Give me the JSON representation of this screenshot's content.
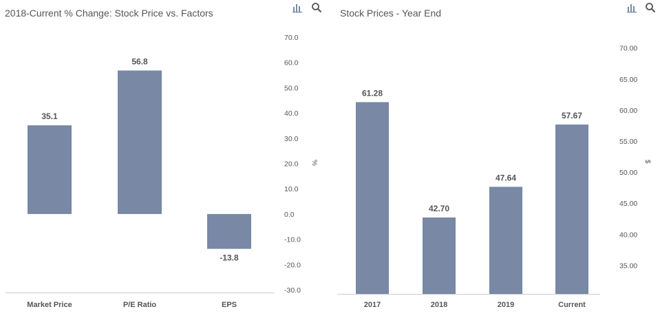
{
  "colors": {
    "bar": "#7888a5",
    "text": "#555555",
    "axis_line": "#cccccc"
  },
  "icons": [
    "bar-chart-icon",
    "zoom-search-icon"
  ],
  "chart_data": [
    {
      "type": "bar",
      "title": "2018-Current % Change: Stock Price vs. Factors",
      "categories": [
        "Market Price",
        "P/E Ratio",
        "EPS"
      ],
      "values": [
        35.1,
        56.8,
        -13.8
      ],
      "value_labels": [
        "35.1",
        "56.8",
        "-13.8"
      ],
      "ylabel": "%",
      "ylim": [
        -30,
        70
      ],
      "yticks": [
        "-30.0",
        "-20.0",
        "-10.0",
        "0.0",
        "10.0",
        "20.0",
        "30.0",
        "40.0",
        "50.0",
        "60.0",
        "70.0"
      ],
      "y_axis_position": "right",
      "grid": false
    },
    {
      "type": "bar",
      "title": "Stock Prices - Year End",
      "categories": [
        "2017",
        "2018",
        "2019",
        "Current"
      ],
      "values": [
        61.28,
        42.7,
        47.64,
        57.67
      ],
      "value_labels": [
        "61.28",
        "42.70",
        "47.64",
        "57.67"
      ],
      "ylabel": "$",
      "ylim": [
        30,
        72.5
      ],
      "yticks": [
        "35.00",
        "40.00",
        "45.00",
        "50.00",
        "55.00",
        "60.00",
        "65.00",
        "70.00"
      ],
      "y_axis_position": "right",
      "grid": false
    }
  ]
}
